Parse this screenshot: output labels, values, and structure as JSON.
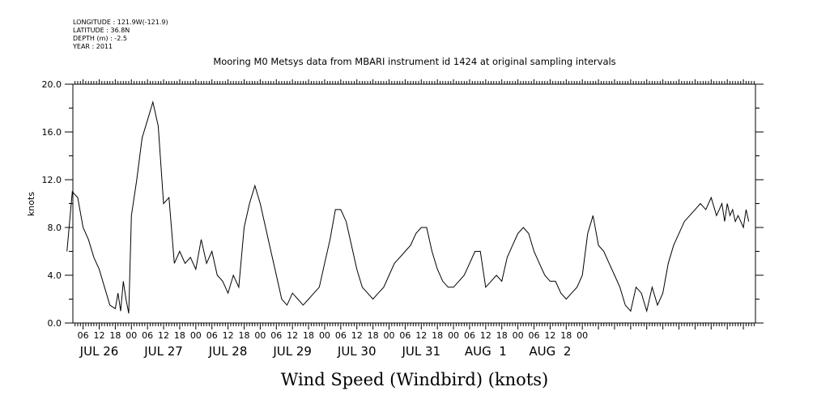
{
  "metadata": {
    "longitude": "LONGITUDE : 121.9W(-121.9)",
    "latitude": "LATITUDE : 36.8N",
    "depth": "DEPTH (m) : -2.5",
    "year": "YEAR : 2011"
  },
  "chart_data": {
    "type": "line",
    "title": "Mooring M0 Metsys data from MBARI instrument id 1424 at original sampling intervals",
    "xlabel": "Wind Speed (Windbird) (knots)",
    "ylabel": "knots",
    "ylim": [
      0,
      20
    ],
    "yticks": [
      "0.0",
      "4.0",
      "8.0",
      "12.0",
      "16.0",
      "20.0"
    ],
    "hour_tick_labels": [
      "06",
      "12",
      "18",
      "00",
      "06",
      "12",
      "18",
      "00",
      "06",
      "12",
      "18",
      "00",
      "06",
      "12",
      "18",
      "00",
      "06",
      "12",
      "18",
      "00",
      "06",
      "12",
      "18",
      "00",
      "06",
      "12",
      "18",
      "00",
      "06",
      "12",
      "18",
      "00"
    ],
    "day_labels": [
      "JUL 26",
      "JUL 27",
      "JUL 28",
      "JUL 29",
      "JUL 30",
      "JUL 31",
      "AUG  1",
      "AUG  2"
    ],
    "x_unit": "hours since 2011-07-26 00:00",
    "grid": false,
    "series": [
      {
        "x": [
          0,
          2,
          4,
          6,
          8,
          10,
          12,
          14,
          16,
          18,
          19,
          20,
          21,
          22,
          23,
          24,
          26,
          28,
          30,
          32,
          34,
          36,
          38,
          40,
          42,
          44,
          46,
          48,
          50,
          52,
          54,
          56,
          58,
          60,
          62,
          64,
          66,
          68,
          70,
          72,
          74,
          76,
          78,
          80,
          82,
          84,
          86,
          88,
          90,
          92,
          94,
          96,
          98,
          100,
          102,
          104,
          106,
          108,
          110,
          112,
          114,
          116,
          118,
          120,
          122,
          124,
          126,
          128,
          130,
          132,
          134,
          136,
          138,
          140,
          142,
          144,
          146,
          148,
          150,
          152,
          154,
          156,
          158,
          160,
          162,
          164,
          166,
          168,
          170,
          172,
          174,
          176,
          178,
          180,
          182,
          184,
          186,
          188,
          190,
          192,
          194,
          196,
          198,
          200,
          202,
          204,
          206,
          208
        ],
        "values": [
          6.0,
          11.0,
          10.5,
          8.0,
          7.0,
          5.5,
          4.5,
          3.0,
          1.5,
          1.2,
          2.5,
          1.0,
          3.5,
          2.0,
          0.8,
          9.0,
          12.0,
          15.5,
          17.0,
          18.5,
          16.5,
          10.0,
          10.5,
          5.0,
          6.0,
          5.0,
          5.5,
          4.5,
          7.0,
          5.0,
          6.0,
          4.0,
          3.5,
          2.5,
          4.0,
          3.0,
          8.0,
          10.0,
          11.5,
          10.0,
          8.0,
          6.0,
          4.0,
          2.0,
          1.5,
          2.5,
          2.0,
          1.5,
          2.0,
          2.5,
          3.0,
          5.0,
          7.0,
          9.5,
          9.5,
          8.5,
          6.5,
          4.5,
          3.0,
          2.5,
          2.0,
          2.5,
          3.0,
          4.0,
          5.0,
          5.5,
          6.0,
          6.5,
          7.5,
          8.0,
          8.0,
          6.0,
          4.5,
          3.5,
          3.0,
          3.0,
          3.5,
          4.0,
          5.0,
          6.0,
          6.0,
          3.0,
          3.5,
          4.0,
          3.5,
          5.5,
          6.5,
          7.5,
          8.0,
          7.5,
          6.0,
          5.0,
          4.0,
          3.5,
          3.5,
          2.5,
          2.0,
          2.5,
          3.0,
          4.0,
          7.5,
          9.0,
          6.5,
          6.0,
          5.0,
          4.0,
          3.0,
          1.5
        ]
      },
      {
        "x": [
          208,
          210,
          212,
          214,
          216,
          218,
          220,
          222,
          224,
          226,
          228,
          230,
          232,
          234,
          236,
          238,
          240,
          242,
          244,
          245,
          246,
          247,
          248,
          249,
          250,
          251,
          252,
          253,
          254
        ],
        "values": [
          1.5,
          1.0,
          3.0,
          2.5,
          1.0,
          3.0,
          1.5,
          2.5,
          5.0,
          6.5,
          7.5,
          8.5,
          9.0,
          9.5,
          10.0,
          9.5,
          10.5,
          9.0,
          10.0,
          8.5,
          10.0,
          9.0,
          9.5,
          8.5,
          9.0,
          8.5,
          8.0,
          9.5,
          8.5
        ]
      }
    ]
  }
}
